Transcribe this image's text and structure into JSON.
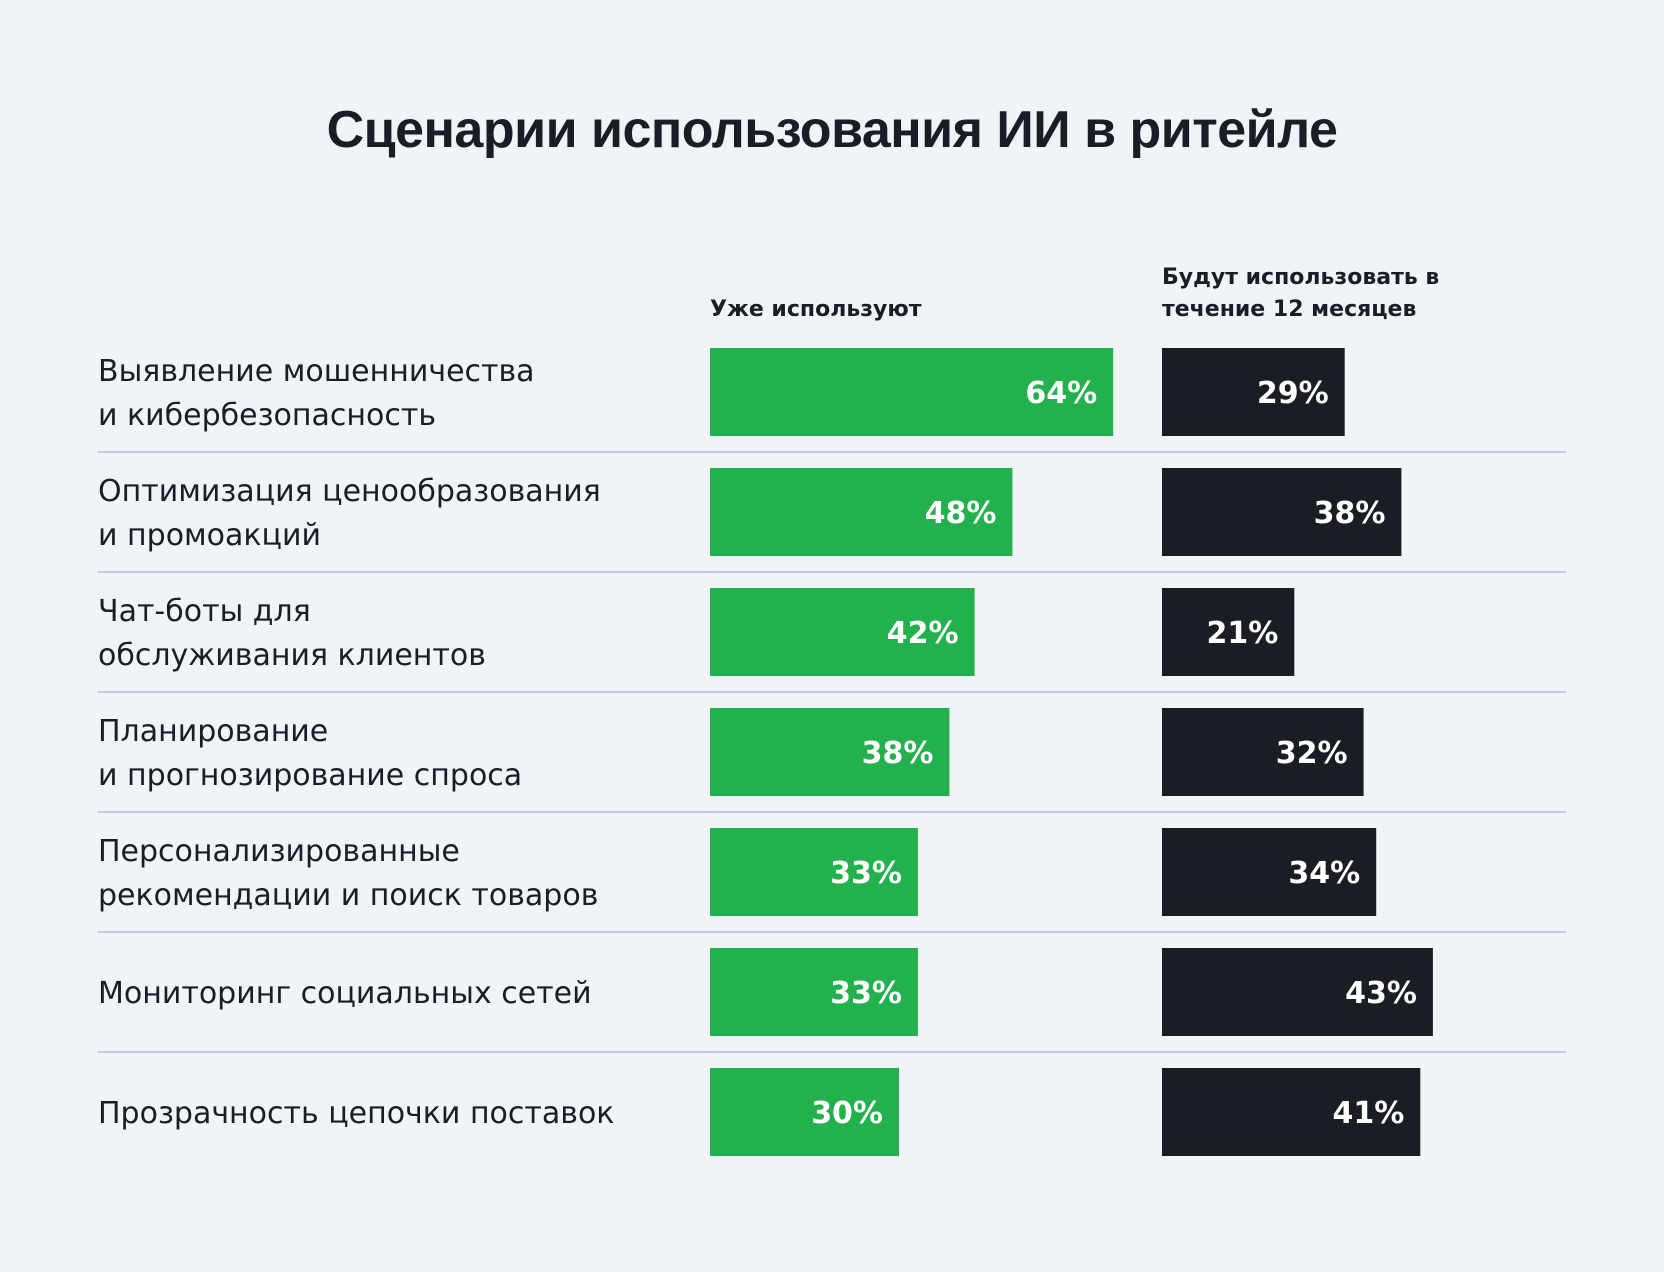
{
  "chart_data": {
    "type": "bar",
    "title": "Сценарии использования ИИ в ритейле",
    "categories": [
      [
        "Выявление мошенничества",
        "и кибербезопасность"
      ],
      [
        "Оптимизация ценообразования",
        "и промоакций"
      ],
      [
        "Чат-боты для",
        "обслуживания клиентов"
      ],
      [
        "Планирование",
        "и прогнозирование спроса"
      ],
      [
        "Персонализированные",
        "рекомендации и поиск товаров"
      ],
      [
        "Мониторинг социальных сетей"
      ],
      [
        "Прозрачность цепочки поставок"
      ]
    ],
    "series": [
      {
        "name": "Уже используют",
        "values": [
          64,
          48,
          42,
          38,
          33,
          33,
          30
        ],
        "labels": [
          "64%",
          "48%",
          "42%",
          "38%",
          "33%",
          "33%",
          "30%"
        ],
        "color": "#22b14c"
      },
      {
        "name": "Будут использовать в течение 12 месяцев",
        "name_lines": [
          "Будут использовать в",
          "течение 12 месяцев"
        ],
        "values": [
          29,
          38,
          21,
          32,
          34,
          43,
          41
        ],
        "labels": [
          "29%",
          "38%",
          "21%",
          "32%",
          "34%",
          "43%",
          "41%"
        ],
        "color": "#1a1d24"
      }
    ],
    "xlabel": "",
    "ylabel": "",
    "legend": "column headers",
    "grid": false
  }
}
